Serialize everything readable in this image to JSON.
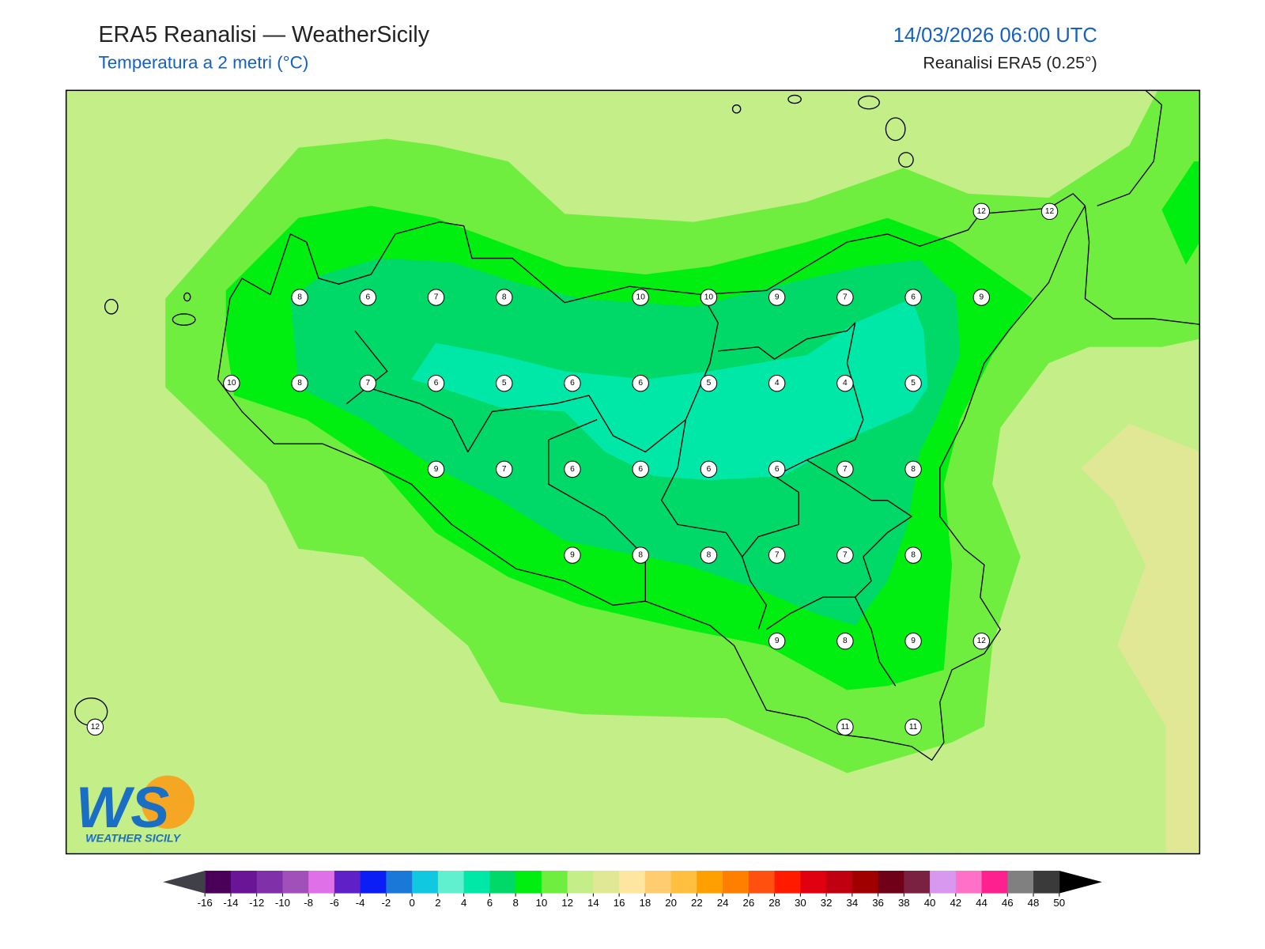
{
  "header": {
    "title": "ERA5 Reanalisi — WeatherSicily",
    "subtitle": "Temperatura a 2 metri (°C)",
    "datetime": "14/03/2026 06:00 UTC",
    "source": "Reanalisi ERA5 (0.25°)"
  },
  "logo": {
    "mark": "WS",
    "text": "WEATHER SICILY"
  },
  "temperature_grid": [
    [
      null,
      null,
      null,
      null,
      null,
      null,
      null,
      null,
      null,
      null,
      null,
      null,
      null,
      12,
      12
    ],
    [
      null,
      null,
      null,
      8,
      6,
      7,
      8,
      null,
      10,
      10,
      9,
      7,
      6,
      9,
      null
    ],
    [
      null,
      null,
      10,
      8,
      7,
      6,
      5,
      6,
      6,
      5,
      4,
      4,
      5,
      null,
      null
    ],
    [
      null,
      null,
      null,
      null,
      null,
      9,
      7,
      6,
      6,
      6,
      6,
      7,
      8,
      null,
      null
    ],
    [
      null,
      null,
      null,
      null,
      null,
      null,
      null,
      9,
      8,
      8,
      7,
      7,
      8,
      null,
      null
    ],
    [
      null,
      null,
      null,
      null,
      null,
      null,
      null,
      null,
      null,
      null,
      9,
      8,
      9,
      12,
      null
    ],
    [
      12,
      null,
      null,
      null,
      null,
      null,
      null,
      null,
      null,
      null,
      null,
      11,
      11,
      null,
      null
    ]
  ],
  "colorbar": {
    "ticks": [
      -16,
      -14,
      -12,
      -10,
      -8,
      -6,
      -4,
      -2,
      0,
      2,
      4,
      6,
      8,
      10,
      12,
      14,
      16,
      18,
      20,
      22,
      24,
      26,
      28,
      30,
      32,
      34,
      36,
      38,
      40,
      42,
      44,
      46,
      48,
      50
    ],
    "colors": [
      "#4a0058",
      "#6a1596",
      "#8030a8",
      "#a050b8",
      "#e070e8",
      "#6020c8",
      "#0a1ef5",
      "#1a78d8",
      "#10c8e0",
      "#60f0d0",
      "#00e8a8",
      "#00d868",
      "#00ee10",
      "#70ee40",
      "#c4ee88",
      "#e0e896",
      "#ffe6a0",
      "#ffcc70",
      "#ffc040",
      "#ffa000",
      "#ff8000",
      "#ff5010",
      "#ff1a00",
      "#e00010",
      "#c00010",
      "#a00000",
      "#700018",
      "#7a2040",
      "#d898f0",
      "#ff70c8",
      "#ff2090",
      "#808080",
      "#3a3a3a"
    ],
    "under_color": "#404048",
    "over_color": "#000000"
  }
}
